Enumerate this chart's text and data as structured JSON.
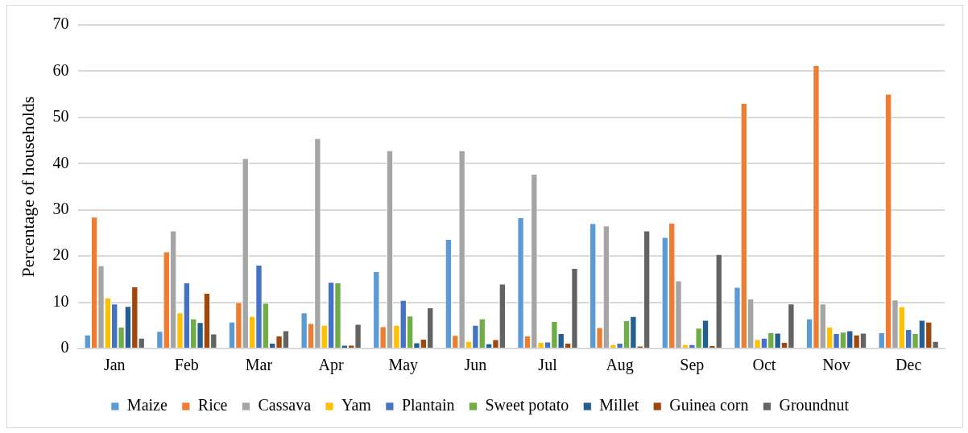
{
  "chart_data": {
    "type": "bar",
    "ylabel": "Percentage of households",
    "categories": [
      "Jan",
      "Feb",
      "Mar",
      "Apr",
      "May",
      "Jun",
      "Jul",
      "Aug",
      "Sep",
      "Oct",
      "Nov",
      "Dec"
    ],
    "series": [
      {
        "name": "Maize",
        "color": "#5b9bd5",
        "values": [
          3,
          3.8,
          5.8,
          7.8,
          16.7,
          23.7,
          28.4,
          27.1,
          24.1,
          13.3,
          6.5,
          3.5
        ]
      },
      {
        "name": "Rice",
        "color": "#ed7d31",
        "values": [
          28.5,
          21,
          10,
          5.5,
          4.8,
          2.9,
          2.8,
          4.6,
          27.2,
          53.1,
          61.3,
          55.1
        ]
      },
      {
        "name": "Cassava",
        "color": "#a5a5a5",
        "values": [
          18,
          25.5,
          41.2,
          45.5,
          42.9,
          42.9,
          37.8,
          26.6,
          14.7,
          10.8,
          9.7,
          10.6
        ]
      },
      {
        "name": "Yam",
        "color": "#ffc000",
        "values": [
          11,
          7.8,
          7,
          5.1,
          5.1,
          1.6,
          1.4,
          0.9,
          0.9,
          2,
          4.7,
          9.1
        ]
      },
      {
        "name": "Plantain",
        "color": "#4472c4",
        "values": [
          9.7,
          14.3,
          18.1,
          14.4,
          10.5,
          5.1,
          1.5,
          1.2,
          0.9,
          2.3,
          3.3,
          4.2
        ]
      },
      {
        "name": "Sweet potato",
        "color": "#70ad47",
        "values": [
          4.7,
          6.5,
          9.9,
          14.3,
          7.1,
          6.5,
          5.9,
          6.1,
          4.5,
          3.5,
          3.6,
          3.3
        ]
      },
      {
        "name": "Millet",
        "color": "#255e91",
        "values": [
          9.2,
          5.7,
          1.2,
          0.8,
          1.3,
          1.1,
          3.3,
          7,
          6.2,
          3.4,
          3.9,
          6.2
        ]
      },
      {
        "name": "Guinea corn",
        "color": "#9e480e",
        "values": [
          13.4,
          12,
          2.8,
          0.8,
          2.1,
          2,
          1.2,
          0.6,
          0.7,
          1.4,
          3,
          5.8
        ]
      },
      {
        "name": "Groundnut",
        "color": "#636363",
        "values": [
          2.3,
          3.2,
          3.9,
          5.3,
          8.9,
          14,
          17.4,
          25.5,
          20.4,
          9.7,
          3.4,
          1.6
        ]
      }
    ],
    "ylim": [
      0,
      70
    ],
    "yticks": [
      0,
      10,
      20,
      30,
      40,
      50,
      60,
      70
    ],
    "grid": "y",
    "legend": "bottom"
  }
}
